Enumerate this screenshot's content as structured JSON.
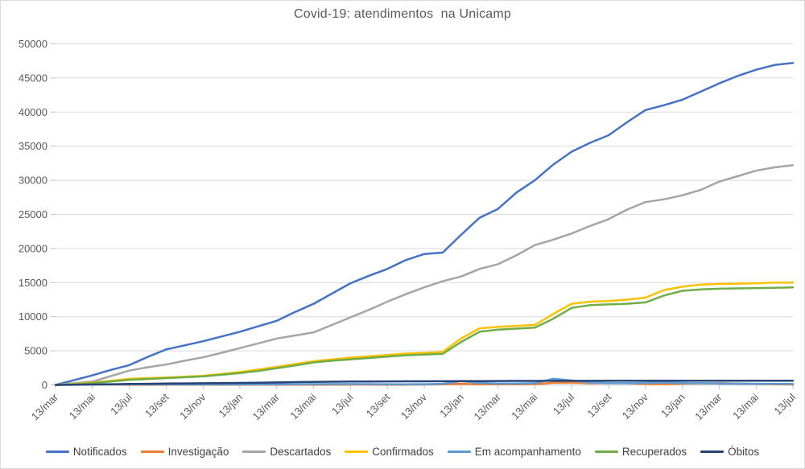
{
  "title": "Covid-19: atendimentos  na Unicamp",
  "colors": {
    "title_text": "#595959",
    "axis_text": "#595959",
    "gridline": "#d9d9d9",
    "axis_line": "#bfbfbf",
    "frame_border": "#d9d9d9",
    "legend_text": "#404040",
    "background": "#ffffff"
  },
  "chart_data": {
    "type": "line",
    "title": "Covid-19: atendimentos  na Unicamp",
    "xlabel": "",
    "ylabel": "",
    "ylim": [
      0,
      50000
    ],
    "grid": true,
    "legend_position": "bottom",
    "x_description": "monthly samples, every 13th of the month, from 13/mar/2020 to 13/jul/2023 (41 points); axis labels every 2 months",
    "x_tick_labels": [
      "13/mar",
      "13/mai",
      "13/jul",
      "13/set",
      "13/nov",
      "13/jan",
      "13/mar",
      "13/mai",
      "13/jul",
      "13/set",
      "13/nov",
      "13/jan",
      "13/mar",
      "13/mai",
      "13/jul",
      "13/set",
      "13/nov",
      "13/jan",
      "13/mar",
      "13/mai",
      "13/jul"
    ],
    "y_tick_labels": [
      "0",
      "5000",
      "10000",
      "15000",
      "20000",
      "25000",
      "30000",
      "35000",
      "40000",
      "45000",
      "50000"
    ],
    "y_ticks": [
      0,
      5000,
      10000,
      15000,
      20000,
      25000,
      30000,
      35000,
      40000,
      45000,
      50000
    ],
    "series": [
      {
        "name": "Notificados",
        "color": "#4472C4",
        "values": [
          0,
          700,
          1400,
          2200,
          2900,
          4100,
          5200,
          5800,
          6400,
          7100,
          7800,
          8600,
          9400,
          10700,
          11900,
          13400,
          14900,
          16000,
          17000,
          18300,
          19200,
          19400,
          22000,
          24500,
          25800,
          28200,
          30000,
          32300,
          34200,
          35500,
          36600,
          38500,
          40300,
          41000,
          41800,
          43000,
          44200,
          45300,
          46200,
          46900,
          47200
        ]
      },
      {
        "name": "Investigação",
        "color": "#ED7D31",
        "values": [
          0,
          60,
          90,
          60,
          40,
          30,
          30,
          30,
          30,
          30,
          40,
          40,
          40,
          40,
          40,
          40,
          50,
          50,
          40,
          40,
          60,
          90,
          160,
          100,
          80,
          90,
          120,
          320,
          350,
          250,
          300,
          260,
          160,
          110,
          200,
          250,
          260,
          210,
          150,
          100,
          60
        ]
      },
      {
        "name": "Descartados",
        "color": "#A5A5A5",
        "values": [
          0,
          250,
          500,
          1300,
          2100,
          2600,
          3000,
          3550,
          4050,
          4700,
          5400,
          6100,
          6800,
          7250,
          7700,
          8800,
          9900,
          11000,
          12200,
          13300,
          14300,
          15200,
          15900,
          17000,
          17700,
          19000,
          20500,
          21300,
          22200,
          23300,
          24300,
          25700,
          26800,
          27200,
          27800,
          28600,
          29800,
          30600,
          31400,
          31900,
          32200
        ]
      },
      {
        "name": "Confirmados",
        "color": "#FFC000",
        "values": [
          0,
          150,
          350,
          600,
          900,
          1000,
          1100,
          1220,
          1350,
          1600,
          1900,
          2250,
          2650,
          3050,
          3480,
          3750,
          4000,
          4200,
          4400,
          4600,
          4700,
          4830,
          6800,
          8300,
          8500,
          8650,
          8800,
          10400,
          11900,
          12200,
          12300,
          12500,
          12800,
          13900,
          14400,
          14700,
          14800,
          14850,
          14900,
          15000,
          15000
        ]
      },
      {
        "name": "Em acompanhamento",
        "color": "#5B9BD5",
        "values": [
          0,
          90,
          130,
          110,
          95,
          85,
          80,
          75,
          70,
          75,
          85,
          90,
          100,
          110,
          120,
          130,
          130,
          120,
          110,
          100,
          110,
          160,
          560,
          300,
          210,
          210,
          260,
          900,
          650,
          350,
          260,
          260,
          310,
          350,
          300,
          250,
          210,
          190,
          170,
          160,
          150
        ]
      },
      {
        "name": "Recuperados",
        "color": "#70AD47",
        "values": [
          0,
          100,
          280,
          500,
          750,
          870,
          1000,
          1120,
          1250,
          1480,
          1750,
          2050,
          2450,
          2850,
          3300,
          3550,
          3750,
          3950,
          4150,
          4350,
          4450,
          4550,
          6300,
          7800,
          8100,
          8250,
          8400,
          9700,
          11300,
          11700,
          11800,
          11900,
          12100,
          13100,
          13800,
          14000,
          14100,
          14150,
          14200,
          14250,
          14300
        ]
      },
      {
        "name": "Óbitos",
        "color": "#264478",
        "values": [
          0,
          30,
          60,
          100,
          140,
          170,
          200,
          220,
          245,
          265,
          295,
          330,
          370,
          410,
          445,
          470,
          490,
          505,
          515,
          525,
          535,
          545,
          558,
          570,
          580,
          586,
          591,
          596,
          600,
          604,
          608,
          611,
          613,
          616,
          618,
          620,
          622,
          624,
          626,
          628,
          630
        ]
      }
    ]
  }
}
